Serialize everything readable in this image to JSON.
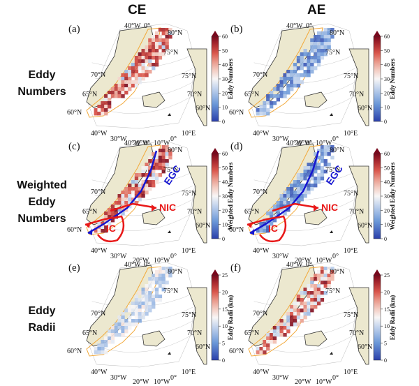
{
  "columns": [
    "CE",
    "AE"
  ],
  "rows": [
    {
      "label_lines": [
        "Eddy",
        "Numbers"
      ]
    },
    {
      "label_lines": [
        "Weighted",
        "Eddy",
        "Numbers"
      ]
    },
    {
      "label_lines": [
        "Eddy",
        "Radii"
      ]
    }
  ],
  "colors": {
    "land": "#ece8cf",
    "coast": "#333333",
    "ocean_outline": "#f2a93b",
    "current_red": "#e81818",
    "current_blue": "#1515d0",
    "graticule": "#bbbbbb"
  },
  "chart_data": [
    {
      "panel": "(a)",
      "type": "heatmap",
      "column": "CE",
      "colorbar_label": "Eddy Numbers",
      "colorbar_ticks": [
        0,
        10,
        20,
        30,
        40,
        50,
        60
      ],
      "colorbar_range": [
        0,
        60
      ],
      "lat_labels": [
        "80°N",
        "75°N",
        "70°N",
        "65°N",
        "60°N"
      ],
      "lon_labels": [
        "40°W",
        "0°",
        "40°W",
        "30°W",
        "20°W",
        "10°W",
        "0°",
        "10°E"
      ],
      "field_level": "high",
      "currents": []
    },
    {
      "panel": "(b)",
      "type": "heatmap",
      "column": "AE",
      "colorbar_label": "Eddy Numbers",
      "colorbar_ticks": [
        0,
        10,
        20,
        30,
        40,
        50,
        60
      ],
      "colorbar_range": [
        0,
        60
      ],
      "lat_labels": [
        "80°N",
        "75°N",
        "70°N",
        "65°N",
        "60°N"
      ],
      "lon_labels": [
        "40°W",
        "0°",
        "40°W",
        "30°W",
        "20°W",
        "10°W",
        "0°",
        "10°E"
      ],
      "field_level": "low",
      "currents": []
    },
    {
      "panel": "(c)",
      "type": "heatmap",
      "column": "CE",
      "colorbar_label": "Weighted Eddy Numbers",
      "colorbar_ticks": [
        0,
        10,
        20,
        30,
        40,
        50,
        60
      ],
      "colorbar_range": [
        0,
        60
      ],
      "lat_labels": [
        "80°N",
        "75°N",
        "70°N",
        "65°N",
        "60°N"
      ],
      "lon_labels": [
        "40°W",
        "0°",
        "40°W",
        "30°W",
        "20°W",
        "10°W",
        "0°",
        "10°E"
      ],
      "field_level": "high",
      "currents": [
        "EGC",
        "NIC",
        "IC"
      ]
    },
    {
      "panel": "(d)",
      "type": "heatmap",
      "column": "AE",
      "colorbar_label": "Weighted Eddy Numbers",
      "colorbar_ticks": [
        0,
        10,
        20,
        30,
        40,
        50,
        60
      ],
      "colorbar_range": [
        0,
        60
      ],
      "lat_labels": [
        "80°N",
        "75°N",
        "70°N",
        "65°N",
        "60°N"
      ],
      "lon_labels": [
        "40°W",
        "0°",
        "40°W",
        "30°W",
        "20°W",
        "10°W",
        "0°",
        "10°E"
      ],
      "field_level": "low",
      "currents": [
        "EGC",
        "NIC",
        "IC"
      ]
    },
    {
      "panel": "(e)",
      "type": "heatmap",
      "column": "CE",
      "colorbar_label": "Eddy Radii (km)",
      "colorbar_ticks": [
        0,
        5,
        10,
        15,
        20,
        25
      ],
      "colorbar_range": [
        0,
        25
      ],
      "lat_labels": [
        "80°N",
        "75°N",
        "70°N",
        "65°N",
        "60°N"
      ],
      "lon_labels": [
        "40°W",
        "0°",
        "40°W",
        "30°W",
        "20°W",
        "10°W",
        "0°",
        "10°E"
      ],
      "field_level": "mid",
      "currents": []
    },
    {
      "panel": "(f)",
      "type": "heatmap",
      "column": "AE",
      "colorbar_label": "Eddy Radii (km)",
      "colorbar_ticks": [
        0,
        5,
        10,
        15,
        20,
        25
      ],
      "colorbar_range": [
        0,
        25
      ],
      "lat_labels": [
        "80°N",
        "75°N",
        "70°N",
        "65°N",
        "60°N"
      ],
      "lon_labels": [
        "40°W",
        "0°",
        "40°W",
        "30°W",
        "20°W",
        "10°W",
        "0°",
        "10°E"
      ],
      "field_level": "radii_high",
      "currents": []
    }
  ]
}
